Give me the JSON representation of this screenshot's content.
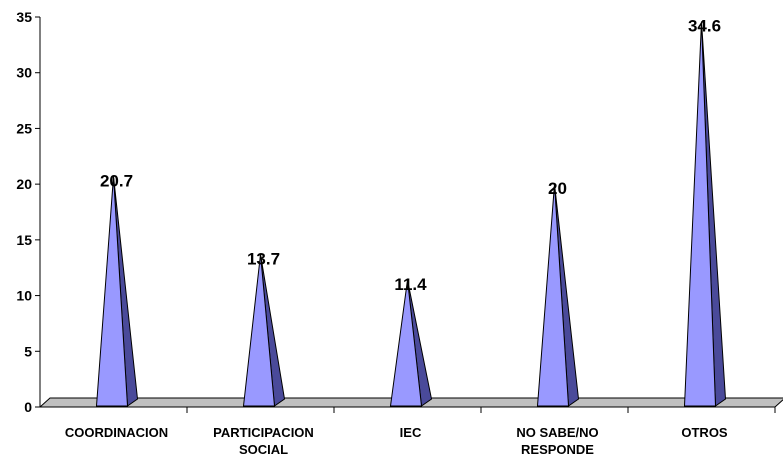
{
  "chart_data": {
    "type": "bar",
    "style": "3d-pyramid",
    "categories": [
      "COORDINACION",
      "PARTICIPACION SOCIAL",
      "IEC",
      "NO SABE/NO RESPONDE",
      "OTROS"
    ],
    "category_lines": [
      [
        "COORDINACION"
      ],
      [
        "PARTICIPACION",
        "SOCIAL"
      ],
      [
        "IEC"
      ],
      [
        "NO SABE/NO",
        "RESPONDE"
      ],
      [
        "OTROS"
      ]
    ],
    "values": [
      20.7,
      13.7,
      11.4,
      20,
      34.6
    ],
    "value_labels": [
      "20.7",
      "13.7",
      "11.4",
      "20",
      "34.6"
    ],
    "y_ticks": [
      "0",
      "5",
      "10",
      "15",
      "20",
      "25",
      "30",
      "35"
    ],
    "ylim": [
      0,
      35
    ],
    "grid": false,
    "legend": "none",
    "colors": {
      "front": "#9999ff",
      "side": "#4a4a9a",
      "floor": "#c0c0c0",
      "outline": "#000000"
    }
  }
}
